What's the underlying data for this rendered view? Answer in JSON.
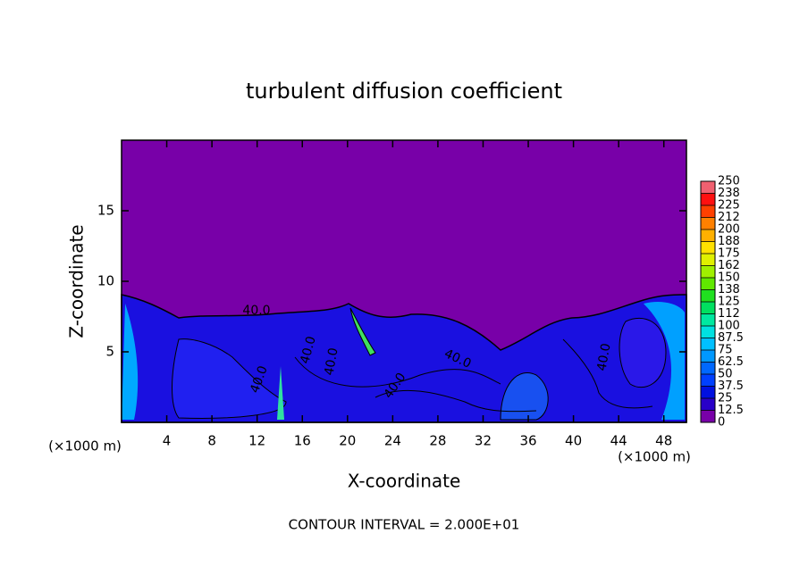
{
  "chart_data": {
    "type": "contour",
    "title": "turbulent diffusion coefficient",
    "x_label": "X-coordinate",
    "y_label": "Z-coordinate",
    "unit_labels": [
      "(×1000 m)",
      "(×1000 m)"
    ],
    "annotation": "CONTOUR INTERVAL = 2.000E+01",
    "xlim": [
      0,
      50
    ],
    "xticks": [
      4,
      8,
      12,
      16,
      20,
      24,
      28,
      32,
      36,
      40,
      44,
      48
    ],
    "ylim": [
      0,
      20
    ],
    "yticks": [
      5,
      10,
      15
    ],
    "contour_labels": [
      "40.0",
      "40.0",
      "40.0",
      "40.0",
      "40.0",
      "40.0",
      "40.0"
    ],
    "colorbar": {
      "levels": [
        0,
        12.5,
        25,
        37.5,
        50,
        62.5,
        75,
        87.5,
        100,
        112,
        125,
        138,
        150,
        162,
        175,
        188,
        200,
        212,
        225,
        238,
        250
      ],
      "colors": [
        "#7800a8",
        "#2800c8",
        "#0010e0",
        "#0040ff",
        "#0068ff",
        "#0098ff",
        "#00c0ff",
        "#00e0e0",
        "#00e8a0",
        "#00e060",
        "#20e020",
        "#60e800",
        "#a0f000",
        "#e0f000",
        "#ffe000",
        "#ffb000",
        "#ff8000",
        "#ff4000",
        "#ff1010",
        "#f06070"
      ]
    }
  }
}
